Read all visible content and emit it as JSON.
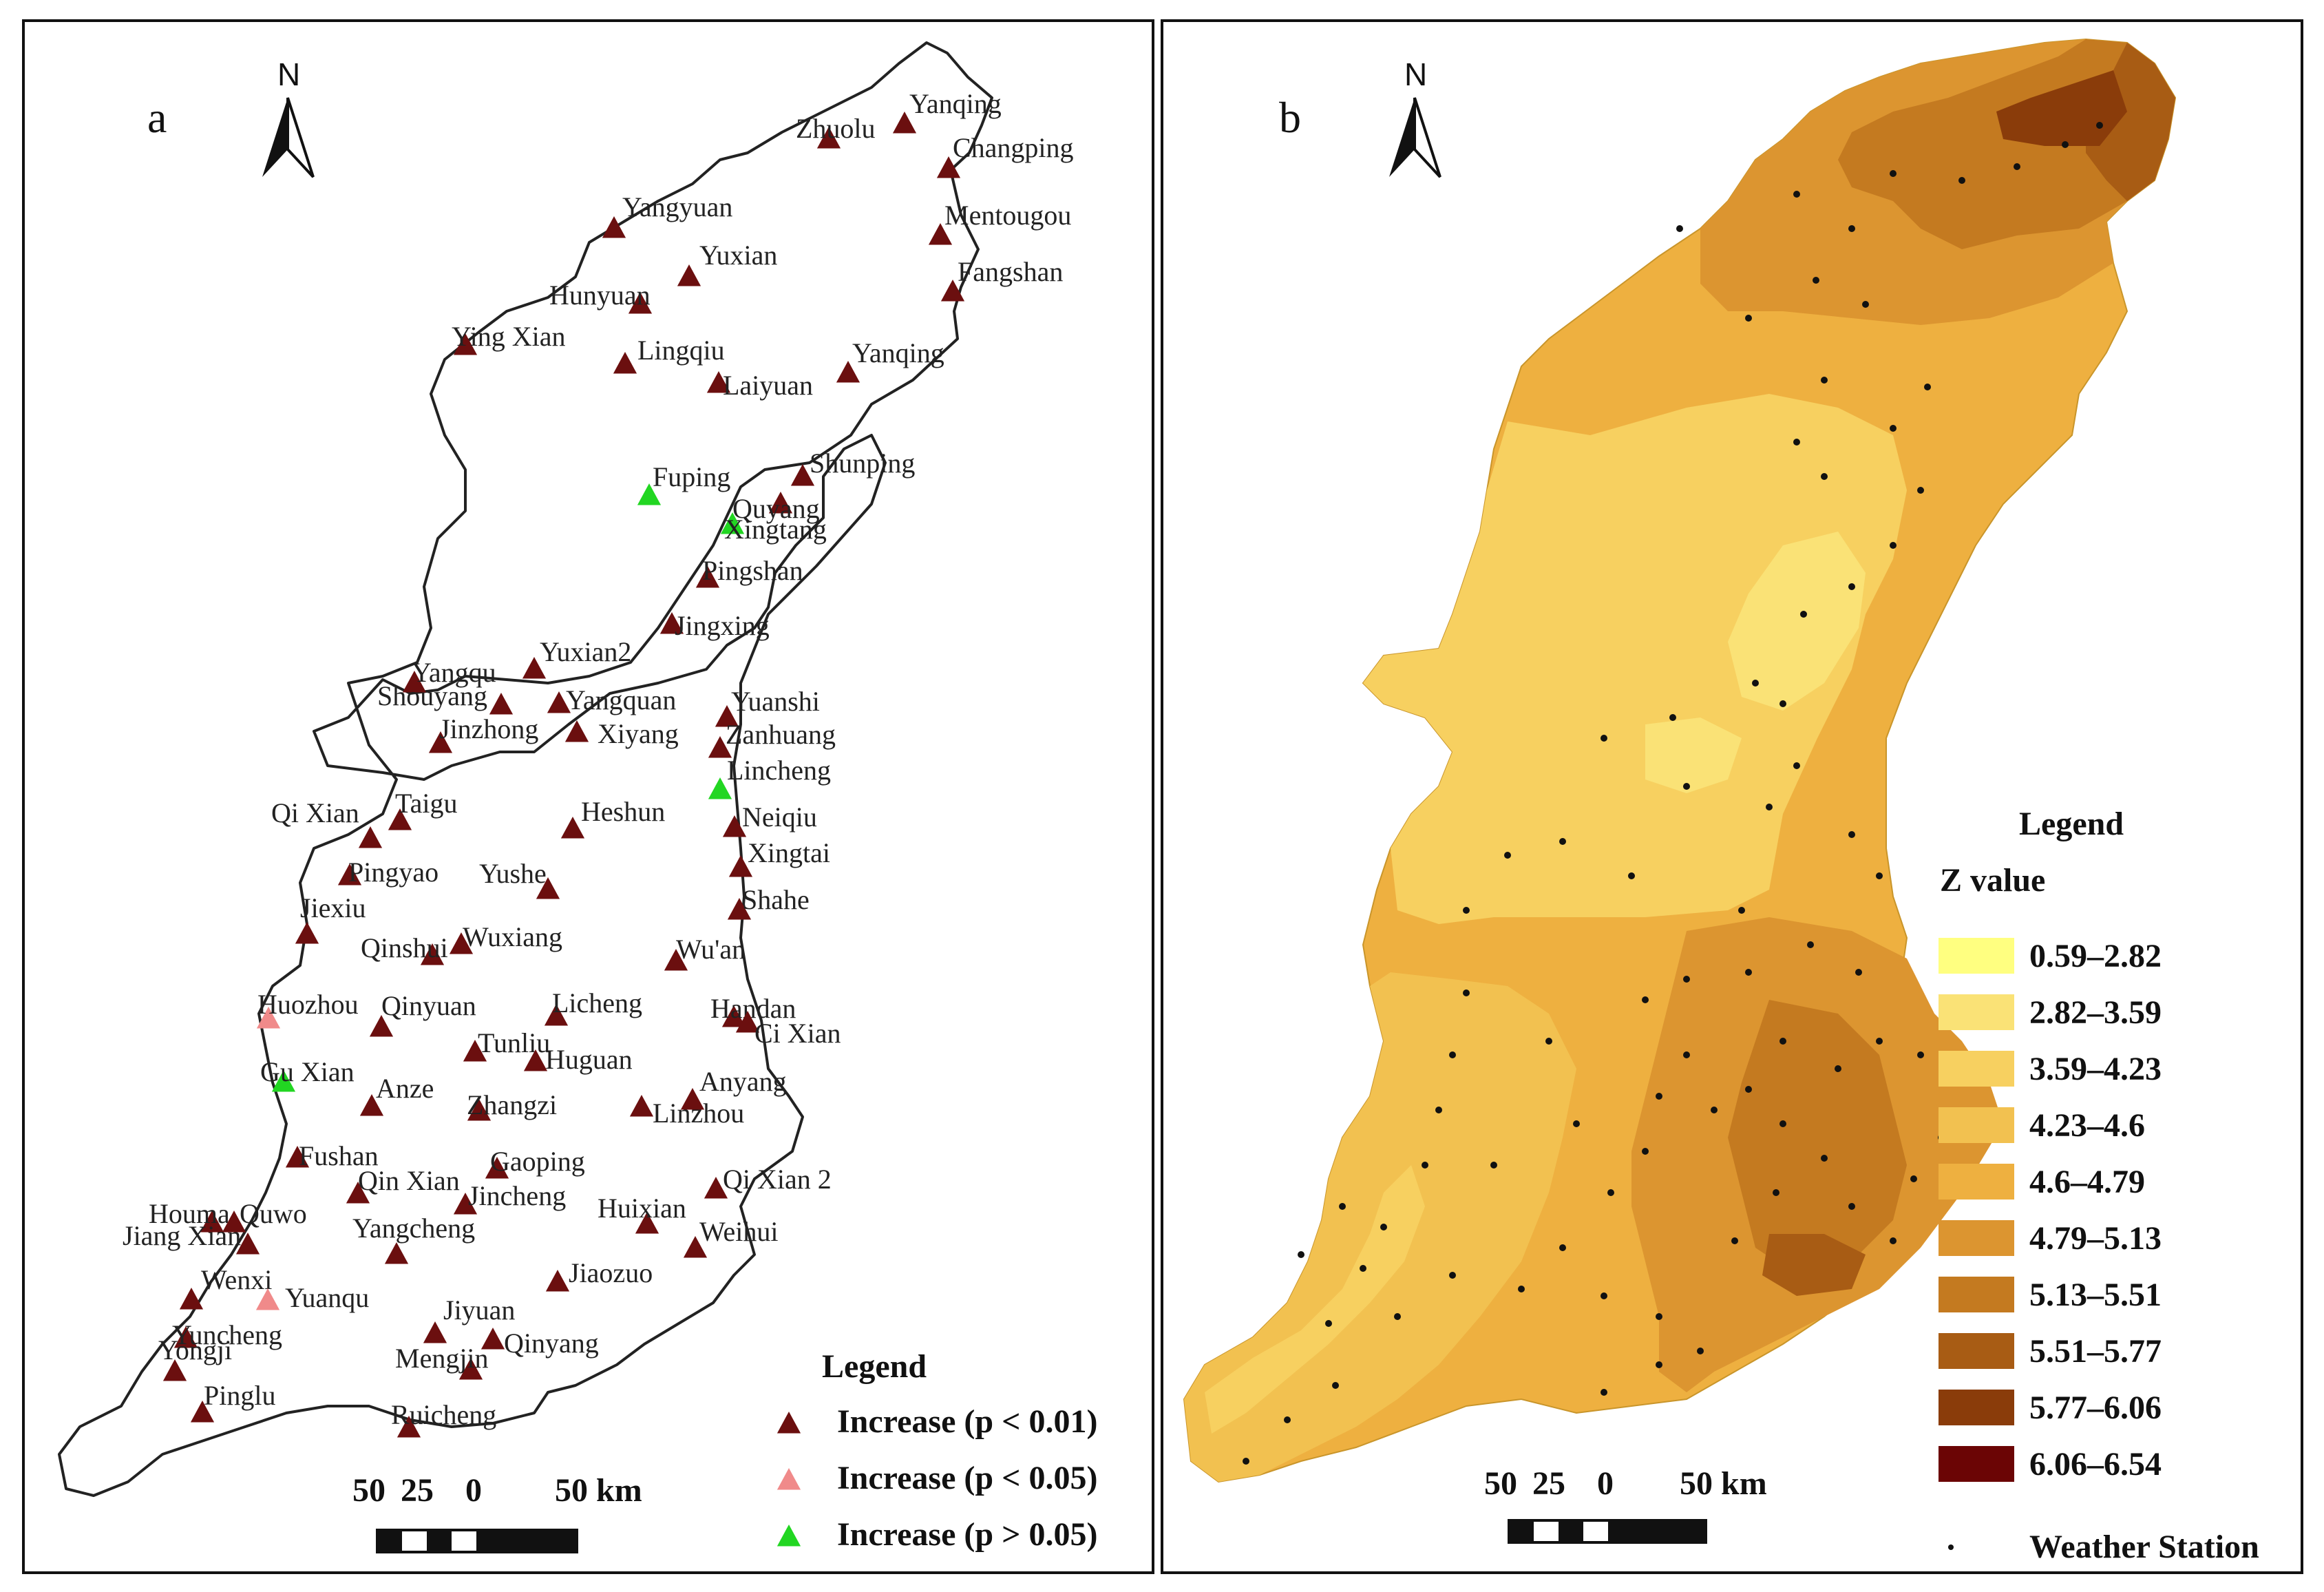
{
  "panel_a": {
    "letter": "a",
    "north": "N",
    "stations": [
      {
        "name": "Yanqing",
        "type": "p001"
      },
      {
        "name": "Zhuolu",
        "type": "p001"
      },
      {
        "name": "Changping",
        "type": "p001"
      },
      {
        "name": "Mentougou",
        "type": "p001"
      },
      {
        "name": "Fangshan",
        "type": "p001"
      },
      {
        "name": "Yangyuan",
        "type": "p001"
      },
      {
        "name": "Yuxian",
        "type": "p001"
      },
      {
        "name": "Hunyuan",
        "type": "p001"
      },
      {
        "name": "Ying Xian",
        "type": "p001"
      },
      {
        "name": "Lingqiu",
        "type": "p001"
      },
      {
        "name": "Laiyuan",
        "type": "p001"
      },
      {
        "name": "Yanqing",
        "type": "p001"
      },
      {
        "name": "Shunping",
        "type": "p001"
      },
      {
        "name": "Fuping",
        "type": "p005plus"
      },
      {
        "name": "Quyang",
        "type": "p001"
      },
      {
        "name": "Xingtang",
        "type": "p005plus"
      },
      {
        "name": "Pingshan",
        "type": "p001"
      },
      {
        "name": "Jingxing",
        "type": "p001"
      },
      {
        "name": "Yangqu",
        "type": "p001"
      },
      {
        "name": "Yuxian2",
        "type": "p001"
      },
      {
        "name": "Shouyang",
        "type": "p001"
      },
      {
        "name": "Yangquan",
        "type": "p001"
      },
      {
        "name": "Yuanshi",
        "type": "p001"
      },
      {
        "name": "Zanhuang",
        "type": "p001"
      },
      {
        "name": "Jinzhong",
        "type": "p001"
      },
      {
        "name": "Xiyang",
        "type": "p001"
      },
      {
        "name": "Lincheng",
        "type": "p005plus"
      },
      {
        "name": "Taigu",
        "type": "p001"
      },
      {
        "name": "Qi Xian",
        "type": "p001"
      },
      {
        "name": "Heshun",
        "type": "p001"
      },
      {
        "name": "Neiqiu",
        "type": "p001"
      },
      {
        "name": "Xingtai",
        "type": "p001"
      },
      {
        "name": "Pingyao",
        "type": "p001"
      },
      {
        "name": "Jiexiu",
        "type": "p001"
      },
      {
        "name": "Yushe",
        "type": "p001"
      },
      {
        "name": "Shahe",
        "type": "p001"
      },
      {
        "name": "Qinshui",
        "type": "p001"
      },
      {
        "name": "Wuxiang",
        "type": "p001"
      },
      {
        "name": "Wu'an",
        "type": "p001"
      },
      {
        "name": "Huozhou",
        "type": "p005"
      },
      {
        "name": "Qinyuan",
        "type": "p001"
      },
      {
        "name": "Licheng",
        "type": "p001"
      },
      {
        "name": "Handan",
        "type": "p001"
      },
      {
        "name": "Ci Xian",
        "type": "p001"
      },
      {
        "name": "Tunliu",
        "type": "p001"
      },
      {
        "name": "Gu Xian",
        "type": "p005plus"
      },
      {
        "name": "Anze",
        "type": "p001"
      },
      {
        "name": "Huguan",
        "type": "p001"
      },
      {
        "name": "Anyang",
        "type": "p001"
      },
      {
        "name": "Zhangzi",
        "type": "p001"
      },
      {
        "name": "Linzhou",
        "type": "p001"
      },
      {
        "name": "Fushan",
        "type": "p001"
      },
      {
        "name": "Gaoping",
        "type": "p001"
      },
      {
        "name": "Qi Xian 2",
        "type": "p001"
      },
      {
        "name": "Qin Xian",
        "type": "p001"
      },
      {
        "name": "Houma",
        "type": "p001"
      },
      {
        "name": "Quwo",
        "type": "p001"
      },
      {
        "name": "Huixian",
        "type": "p001"
      },
      {
        "name": "Jincheng",
        "type": "p001"
      },
      {
        "name": "Jiang Xian",
        "type": "p001"
      },
      {
        "name": "Yangcheng",
        "type": "p001"
      },
      {
        "name": "Weihui",
        "type": "p001"
      },
      {
        "name": "Wenxi",
        "type": "p001"
      },
      {
        "name": "Yuanqu",
        "type": "p005"
      },
      {
        "name": "Jiaozuo",
        "type": "p001"
      },
      {
        "name": "Jiyuan",
        "type": "p001"
      },
      {
        "name": "Yuncheng",
        "type": "p001"
      },
      {
        "name": "Qinyang",
        "type": "p001"
      },
      {
        "name": "Yongji",
        "type": "p001"
      },
      {
        "name": "Pinglu",
        "type": "p001"
      },
      {
        "name": "Mengjin",
        "type": "p001"
      },
      {
        "name": "Ruicheng",
        "type": "p001"
      }
    ],
    "legend": {
      "title": "Legend",
      "items": [
        {
          "type": "p001",
          "label": "Increase (p < 0.01)",
          "color": "#6b0f0f"
        },
        {
          "type": "p005",
          "label": "Increase (p < 0.05)",
          "color": "#f08a8a"
        },
        {
          "type": "p005plus",
          "label": "Increase (p > 0.05)",
          "color": "#22d622"
        }
      ]
    },
    "scale": {
      "left": "50",
      "mid": "25",
      "zero": "0",
      "right": "50 km"
    }
  },
  "panel_b": {
    "letter": "b",
    "north": "N",
    "legend": {
      "title": "Legend",
      "subtitle": "Z value",
      "classes": [
        {
          "label": "0.59–2.82",
          "color": "#ffff80"
        },
        {
          "label": "2.82–3.59",
          "color": "#fae276"
        },
        {
          "label": "3.59–4.23",
          "color": "#f7d060"
        },
        {
          "label": "4.23–4.6",
          "color": "#f2c150"
        },
        {
          "label": "4.6–4.79",
          "color": "#eeb040"
        },
        {
          "label": "4.79–5.13",
          "color": "#dc9530"
        },
        {
          "label": "5.13–5.51",
          "color": "#c47a20"
        },
        {
          "label": "5.51–5.77",
          "color": "#a85c14"
        },
        {
          "label": "5.77–6.06",
          "color": "#8a3c0a"
        },
        {
          "label": "6.06–6.54",
          "color": "#6b0505"
        }
      ],
      "station_label": "Weather Station"
    },
    "scale": {
      "left": "50",
      "mid": "25",
      "zero": "0",
      "right": "50 km"
    }
  }
}
